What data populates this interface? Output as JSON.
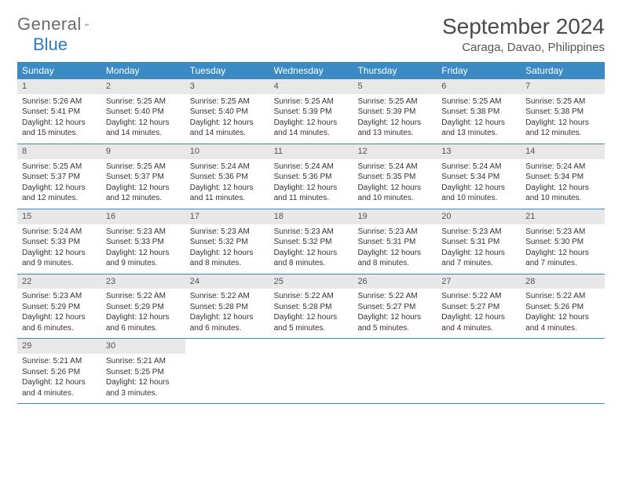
{
  "logo": {
    "text1": "General",
    "text2": "Blue"
  },
  "title": "September 2024",
  "location": "Caraga, Davao, Philippines",
  "colors": {
    "header_bg": "#3b8ac4",
    "header_text": "#ffffff",
    "daynum_bg": "#e8e8e8",
    "rule": "#3b8ac4",
    "body_text": "#333333",
    "page_bg": "#ffffff"
  },
  "weekdays": [
    "Sunday",
    "Monday",
    "Tuesday",
    "Wednesday",
    "Thursday",
    "Friday",
    "Saturday"
  ],
  "weeks": [
    [
      {
        "n": "1",
        "sunrise": "5:26 AM",
        "sunset": "5:41 PM",
        "day": "12 hours and 15 minutes."
      },
      {
        "n": "2",
        "sunrise": "5:25 AM",
        "sunset": "5:40 PM",
        "day": "12 hours and 14 minutes."
      },
      {
        "n": "3",
        "sunrise": "5:25 AM",
        "sunset": "5:40 PM",
        "day": "12 hours and 14 minutes."
      },
      {
        "n": "4",
        "sunrise": "5:25 AM",
        "sunset": "5:39 PM",
        "day": "12 hours and 14 minutes."
      },
      {
        "n": "5",
        "sunrise": "5:25 AM",
        "sunset": "5:39 PM",
        "day": "12 hours and 13 minutes."
      },
      {
        "n": "6",
        "sunrise": "5:25 AM",
        "sunset": "5:38 PM",
        "day": "12 hours and 13 minutes."
      },
      {
        "n": "7",
        "sunrise": "5:25 AM",
        "sunset": "5:38 PM",
        "day": "12 hours and 12 minutes."
      }
    ],
    [
      {
        "n": "8",
        "sunrise": "5:25 AM",
        "sunset": "5:37 PM",
        "day": "12 hours and 12 minutes."
      },
      {
        "n": "9",
        "sunrise": "5:25 AM",
        "sunset": "5:37 PM",
        "day": "12 hours and 12 minutes."
      },
      {
        "n": "10",
        "sunrise": "5:24 AM",
        "sunset": "5:36 PM",
        "day": "12 hours and 11 minutes."
      },
      {
        "n": "11",
        "sunrise": "5:24 AM",
        "sunset": "5:36 PM",
        "day": "12 hours and 11 minutes."
      },
      {
        "n": "12",
        "sunrise": "5:24 AM",
        "sunset": "5:35 PM",
        "day": "12 hours and 10 minutes."
      },
      {
        "n": "13",
        "sunrise": "5:24 AM",
        "sunset": "5:34 PM",
        "day": "12 hours and 10 minutes."
      },
      {
        "n": "14",
        "sunrise": "5:24 AM",
        "sunset": "5:34 PM",
        "day": "12 hours and 10 minutes."
      }
    ],
    [
      {
        "n": "15",
        "sunrise": "5:24 AM",
        "sunset": "5:33 PM",
        "day": "12 hours and 9 minutes."
      },
      {
        "n": "16",
        "sunrise": "5:23 AM",
        "sunset": "5:33 PM",
        "day": "12 hours and 9 minutes."
      },
      {
        "n": "17",
        "sunrise": "5:23 AM",
        "sunset": "5:32 PM",
        "day": "12 hours and 8 minutes."
      },
      {
        "n": "18",
        "sunrise": "5:23 AM",
        "sunset": "5:32 PM",
        "day": "12 hours and 8 minutes."
      },
      {
        "n": "19",
        "sunrise": "5:23 AM",
        "sunset": "5:31 PM",
        "day": "12 hours and 8 minutes."
      },
      {
        "n": "20",
        "sunrise": "5:23 AM",
        "sunset": "5:31 PM",
        "day": "12 hours and 7 minutes."
      },
      {
        "n": "21",
        "sunrise": "5:23 AM",
        "sunset": "5:30 PM",
        "day": "12 hours and 7 minutes."
      }
    ],
    [
      {
        "n": "22",
        "sunrise": "5:23 AM",
        "sunset": "5:29 PM",
        "day": "12 hours and 6 minutes."
      },
      {
        "n": "23",
        "sunrise": "5:22 AM",
        "sunset": "5:29 PM",
        "day": "12 hours and 6 minutes."
      },
      {
        "n": "24",
        "sunrise": "5:22 AM",
        "sunset": "5:28 PM",
        "day": "12 hours and 6 minutes."
      },
      {
        "n": "25",
        "sunrise": "5:22 AM",
        "sunset": "5:28 PM",
        "day": "12 hours and 5 minutes."
      },
      {
        "n": "26",
        "sunrise": "5:22 AM",
        "sunset": "5:27 PM",
        "day": "12 hours and 5 minutes."
      },
      {
        "n": "27",
        "sunrise": "5:22 AM",
        "sunset": "5:27 PM",
        "day": "12 hours and 4 minutes."
      },
      {
        "n": "28",
        "sunrise": "5:22 AM",
        "sunset": "5:26 PM",
        "day": "12 hours and 4 minutes."
      }
    ],
    [
      {
        "n": "29",
        "sunrise": "5:21 AM",
        "sunset": "5:26 PM",
        "day": "12 hours and 4 minutes."
      },
      {
        "n": "30",
        "sunrise": "5:21 AM",
        "sunset": "5:25 PM",
        "day": "12 hours and 3 minutes."
      },
      null,
      null,
      null,
      null,
      null
    ]
  ],
  "labels": {
    "sunrise": "Sunrise: ",
    "sunset": "Sunset: ",
    "daylight": "Daylight: "
  }
}
